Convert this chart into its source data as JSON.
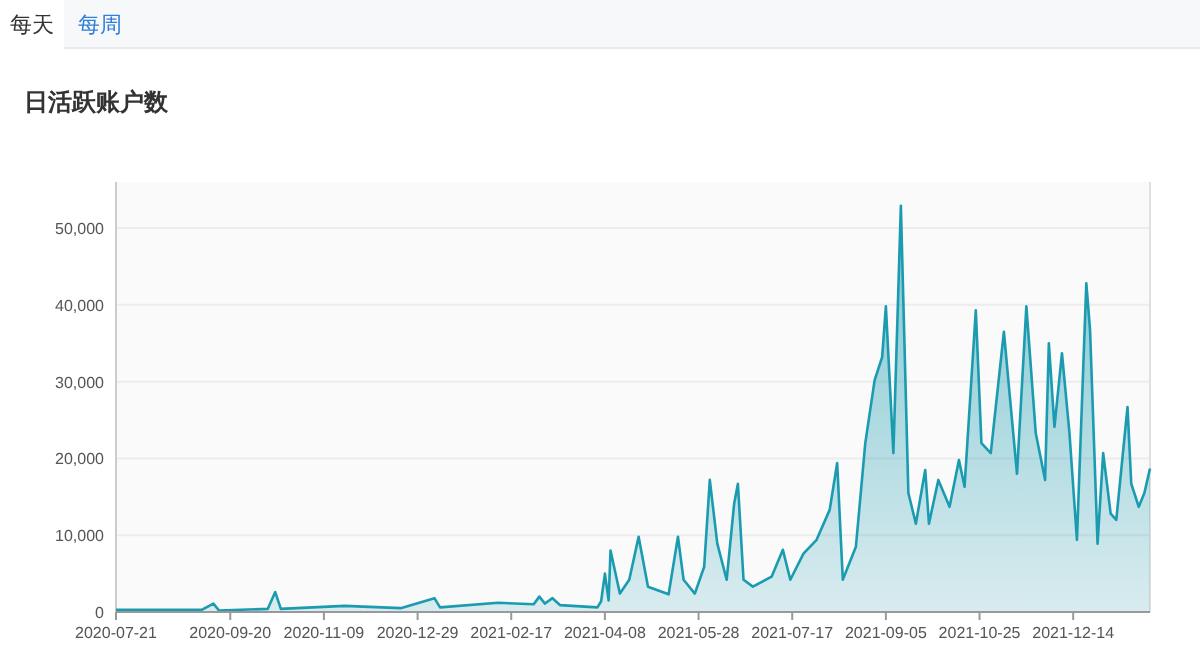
{
  "chart_data": {
    "type": "area",
    "title": "日活跃账户数",
    "annotations": [
      "每天",
      "每周"
    ],
    "x": [
      "2020-07-21",
      "2020-09-05",
      "2020-09-11",
      "2020-09-14",
      "2020-10-10",
      "2020-10-14",
      "2020-10-17",
      "2020-11-20",
      "2020-12-20",
      "2021-01-07",
      "2021-01-10",
      "2021-02-10",
      "2021-03-01",
      "2021-03-04",
      "2021-03-07",
      "2021-03-11",
      "2021-03-15",
      "2021-04-04",
      "2021-04-06",
      "2021-04-08",
      "2021-04-10",
      "2021-04-11",
      "2021-04-16",
      "2021-04-21",
      "2021-04-26",
      "2021-05-01",
      "2021-05-12",
      "2021-05-17",
      "2021-05-20",
      "2021-05-26",
      "2021-05-31",
      "2021-06-03",
      "2021-06-07",
      "2021-06-12",
      "2021-06-16",
      "2021-06-18",
      "2021-06-21",
      "2021-06-26",
      "2021-07-06",
      "2021-07-12",
      "2021-07-16",
      "2021-07-23",
      "2021-07-30",
      "2021-08-06",
      "2021-08-10",
      "2021-08-13",
      "2021-08-20",
      "2021-08-25",
      "2021-08-30",
      "2021-09-03",
      "2021-09-05",
      "2021-09-09",
      "2021-09-13",
      "2021-09-17",
      "2021-09-21",
      "2021-09-26",
      "2021-09-28",
      "2021-10-03",
      "2021-10-09",
      "2021-10-14",
      "2021-10-17",
      "2021-10-23",
      "2021-10-26",
      "2021-10-31",
      "2021-11-07",
      "2021-11-10",
      "2021-11-14",
      "2021-11-19",
      "2021-11-24",
      "2021-11-29",
      "2021-12-01",
      "2021-12-04",
      "2021-12-08",
      "2021-12-12",
      "2021-12-16",
      "2021-12-21",
      "2021-12-23",
      "2021-12-27",
      "2021-12-30",
      "2022-01-03",
      "2022-01-06",
      "2022-01-12",
      "2022-01-14",
      "2022-01-18",
      "2022-01-21",
      "2022-01-24"
    ],
    "series": [
      {
        "color": "#1a9bb0",
        "values": [
          300,
          300,
          1100,
          200,
          400,
          2600,
          400,
          800,
          500,
          1800,
          600,
          1200,
          1000,
          2000,
          1100,
          1800,
          900,
          600,
          1400,
          5000,
          1500,
          8000,
          2400,
          4200,
          9800,
          3300,
          2300,
          9800,
          4200,
          2400,
          5900,
          17200,
          8900,
          4200,
          14100,
          16700,
          4200,
          3300,
          4600,
          8100,
          4200,
          7600,
          9400,
          13300,
          19400,
          4200,
          8500,
          22000,
          30200,
          33200,
          39800,
          20700,
          52900,
          15500,
          11500,
          18500,
          11500,
          17200,
          13700,
          19800,
          16300,
          39300,
          22000,
          20700,
          36500,
          28500,
          18000,
          39800,
          23300,
          17200,
          35000,
          24100,
          33700,
          23300,
          9400,
          42800,
          36700,
          8900,
          20700,
          12800,
          12000,
          26700,
          16700,
          13700,
          15500,
          18700
        ]
      }
    ],
    "xlim": [
      "2020-07-21",
      "2022-01-24"
    ],
    "xticks": [
      "2020-07-21",
      "2020-09-20",
      "2020-11-09",
      "2020-12-29",
      "2021-02-17",
      "2021-04-08",
      "2021-05-28",
      "2021-07-17",
      "2021-09-05",
      "2021-10-25",
      "2021-12-14"
    ],
    "ylim": [
      0,
      56000
    ],
    "yticks": [
      {
        "value": 0,
        "label": "0"
      },
      {
        "value": 10000,
        "label": "10,000"
      },
      {
        "value": 20000,
        "label": "20,000"
      },
      {
        "value": 30000,
        "label": "30,000"
      },
      {
        "value": 40000,
        "label": "40,000"
      },
      {
        "value": 50000,
        "label": "50,000"
      }
    ],
    "grid": "y"
  }
}
